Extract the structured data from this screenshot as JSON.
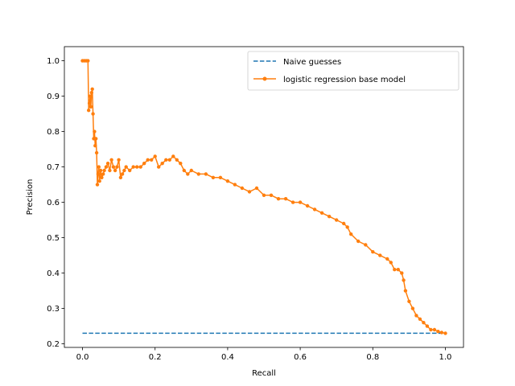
{
  "chart_data": {
    "type": "line",
    "title": "",
    "xlabel": "Recall",
    "ylabel": "Precision",
    "xlim": [
      -0.05,
      1.05
    ],
    "ylim": [
      0.19,
      1.04
    ],
    "xticks": [
      "0.0",
      "0.2",
      "0.4",
      "0.6",
      "0.8",
      "1.0"
    ],
    "yticks": [
      "0.2",
      "0.3",
      "0.4",
      "0.5",
      "0.6",
      "0.7",
      "0.8",
      "0.9",
      "1.0"
    ],
    "legend_position": "upper right",
    "grid": false,
    "series": [
      {
        "name": "Naive guesses",
        "style": "dashed",
        "marker": "none",
        "color": "#1f77b4",
        "x": [
          0.0,
          1.0
        ],
        "y": [
          0.23,
          0.23
        ]
      },
      {
        "name": "logistic regression base model",
        "style": "solid",
        "marker": "point",
        "color": "#ff7f0e",
        "x": [
          0.0,
          0.005,
          0.01,
          0.015,
          0.017,
          0.019,
          0.021,
          0.023,
          0.025,
          0.027,
          0.029,
          0.031,
          0.033,
          0.035,
          0.037,
          0.039,
          0.041,
          0.043,
          0.045,
          0.047,
          0.05,
          0.053,
          0.057,
          0.06,
          0.065,
          0.07,
          0.075,
          0.08,
          0.085,
          0.09,
          0.095,
          0.1,
          0.105,
          0.11,
          0.115,
          0.12,
          0.13,
          0.14,
          0.15,
          0.16,
          0.17,
          0.18,
          0.19,
          0.2,
          0.21,
          0.22,
          0.23,
          0.24,
          0.25,
          0.26,
          0.27,
          0.28,
          0.29,
          0.3,
          0.32,
          0.34,
          0.36,
          0.38,
          0.4,
          0.42,
          0.44,
          0.46,
          0.48,
          0.5,
          0.52,
          0.54,
          0.56,
          0.58,
          0.6,
          0.62,
          0.64,
          0.66,
          0.68,
          0.7,
          0.72,
          0.73,
          0.74,
          0.76,
          0.78,
          0.8,
          0.82,
          0.84,
          0.85,
          0.86,
          0.87,
          0.88,
          0.885,
          0.89,
          0.9,
          0.91,
          0.92,
          0.93,
          0.94,
          0.95,
          0.96,
          0.97,
          0.98,
          0.99,
          1.0
        ],
        "y": [
          1.0,
          1.0,
          1.0,
          1.0,
          0.86,
          0.88,
          0.9,
          0.87,
          0.91,
          0.92,
          0.85,
          0.78,
          0.8,
          0.76,
          0.78,
          0.74,
          0.65,
          0.68,
          0.7,
          0.66,
          0.69,
          0.67,
          0.68,
          0.69,
          0.7,
          0.71,
          0.69,
          0.72,
          0.7,
          0.69,
          0.7,
          0.72,
          0.67,
          0.68,
          0.69,
          0.7,
          0.69,
          0.7,
          0.7,
          0.7,
          0.71,
          0.72,
          0.72,
          0.73,
          0.7,
          0.71,
          0.72,
          0.72,
          0.73,
          0.72,
          0.71,
          0.69,
          0.68,
          0.69,
          0.68,
          0.68,
          0.67,
          0.67,
          0.66,
          0.65,
          0.64,
          0.63,
          0.64,
          0.62,
          0.62,
          0.61,
          0.61,
          0.6,
          0.6,
          0.59,
          0.58,
          0.57,
          0.56,
          0.55,
          0.54,
          0.53,
          0.51,
          0.49,
          0.48,
          0.46,
          0.45,
          0.44,
          0.43,
          0.41,
          0.41,
          0.4,
          0.38,
          0.35,
          0.32,
          0.3,
          0.28,
          0.27,
          0.26,
          0.25,
          0.24,
          0.24,
          0.235,
          0.232,
          0.23
        ]
      }
    ]
  }
}
